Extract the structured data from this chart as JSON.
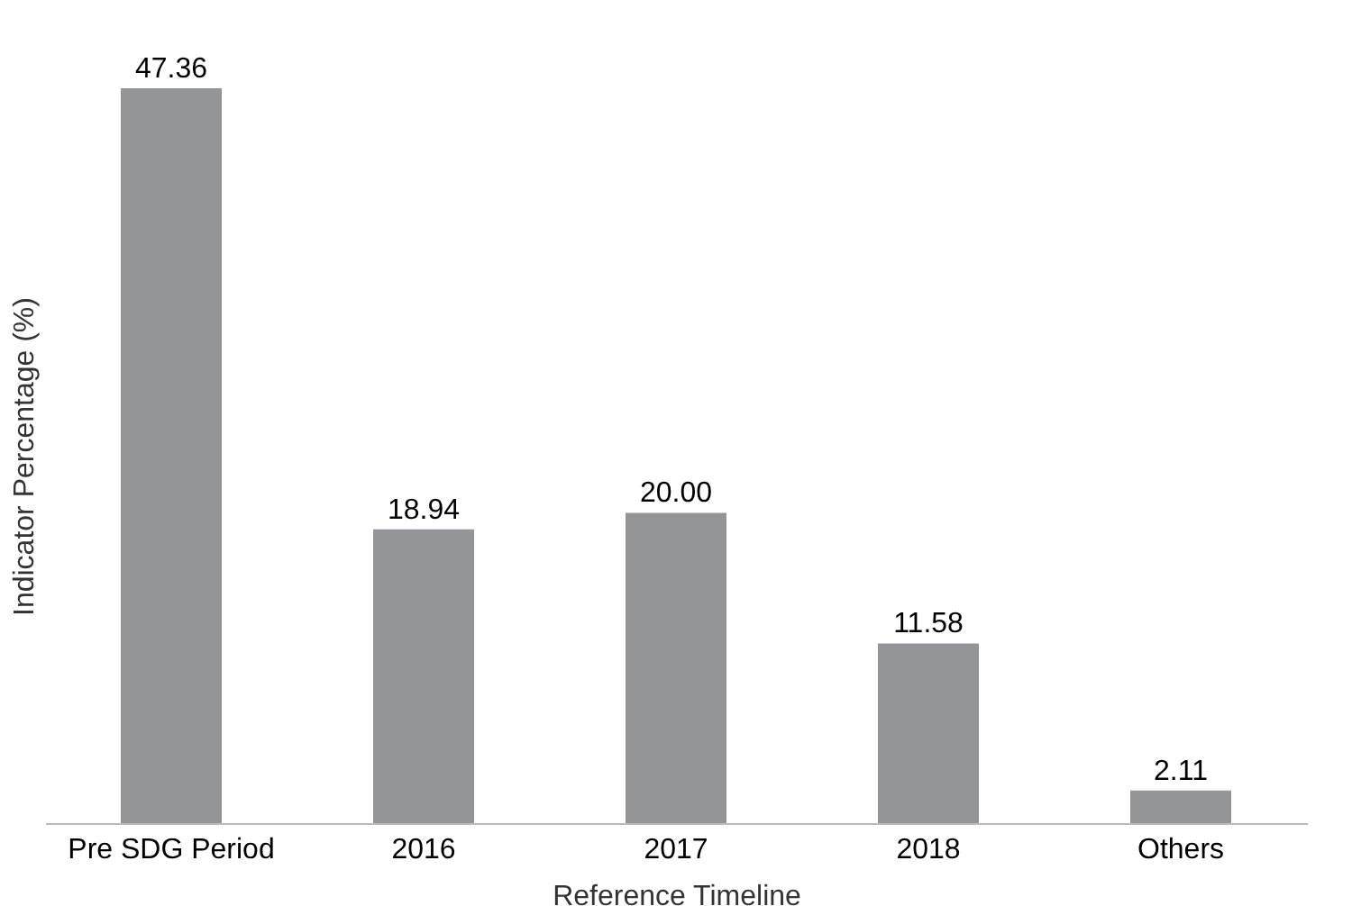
{
  "chart_data": {
    "type": "bar",
    "xlabel": "Reference Timeline",
    "ylabel": "Indicator Percentage (%)",
    "categories": [
      "Pre SDG Period",
      "2016",
      "2017",
      "2018",
      "Others"
    ],
    "values": [
      47.36,
      18.94,
      20.0,
      11.58,
      2.11
    ],
    "value_labels": [
      "47.36",
      "18.94",
      "20.00",
      "11.58",
      "2.11"
    ],
    "color": "#939598",
    "tick_labels": "x"
  }
}
